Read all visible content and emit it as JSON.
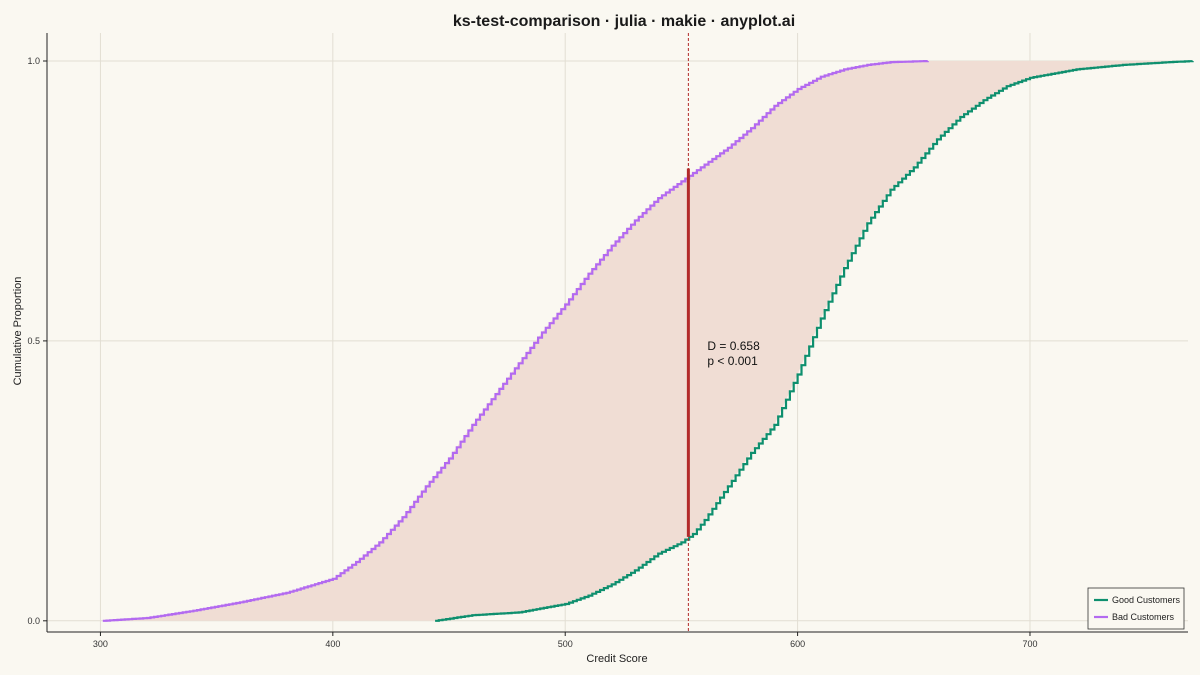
{
  "chart_data": {
    "type": "line",
    "title": "ks-test-comparison · julia · makie · anyplot.ai",
    "xlabel": "Credit Score",
    "ylabel": "Cumulative Proportion",
    "xlim": [
      277,
      768
    ],
    "ylim": [
      -0.02,
      1.05
    ],
    "x_ticks": [
      300,
      400,
      500,
      600,
      700
    ],
    "y_ticks": [
      0.0,
      0.5,
      1.0
    ],
    "x_tick_labels": [
      "300",
      "400",
      "500",
      "600",
      "700"
    ],
    "y_tick_labels": [
      "0.0",
      "0.5",
      "1.0"
    ],
    "grid": true,
    "legend_position": "bottom-right",
    "series": [
      {
        "name": "Good Customers",
        "color": "#0E8F6E",
        "x": [
          444,
          460,
          480,
          500,
          510,
          520,
          530,
          540,
          550,
          555,
          560,
          570,
          580,
          590,
          600,
          610,
          620,
          630,
          640,
          650,
          660,
          670,
          680,
          690,
          700,
          720,
          740,
          760,
          770
        ],
        "y": [
          0.0,
          0.01,
          0.015,
          0.03,
          0.045,
          0.065,
          0.09,
          0.12,
          0.14,
          0.155,
          0.18,
          0.24,
          0.3,
          0.35,
          0.44,
          0.54,
          0.63,
          0.71,
          0.77,
          0.81,
          0.86,
          0.9,
          0.93,
          0.955,
          0.97,
          0.985,
          0.993,
          0.998,
          1.0
        ]
      },
      {
        "name": "Bad Customers",
        "color": "#B36AF0",
        "x": [
          301,
          320,
          340,
          360,
          380,
          400,
          410,
          420,
          430,
          440,
          450,
          460,
          470,
          480,
          490,
          500,
          510,
          520,
          530,
          540,
          550,
          555,
          560,
          570,
          580,
          590,
          600,
          610,
          620,
          630,
          640,
          656
        ],
        "y": [
          0.0,
          0.005,
          0.018,
          0.033,
          0.05,
          0.075,
          0.105,
          0.14,
          0.185,
          0.24,
          0.29,
          0.35,
          0.405,
          0.46,
          0.515,
          0.565,
          0.62,
          0.67,
          0.715,
          0.755,
          0.785,
          0.8,
          0.815,
          0.845,
          0.88,
          0.92,
          0.95,
          0.972,
          0.985,
          0.993,
          0.998,
          1.0
        ]
      }
    ],
    "ks_statistic": {
      "x": 553,
      "y_low": 0.15,
      "y_high": 0.808,
      "color": "#B22A2A"
    },
    "fill_color": "#F0DDD4",
    "annotations": [
      "D = 0.658",
      "p < 0.001"
    ]
  }
}
